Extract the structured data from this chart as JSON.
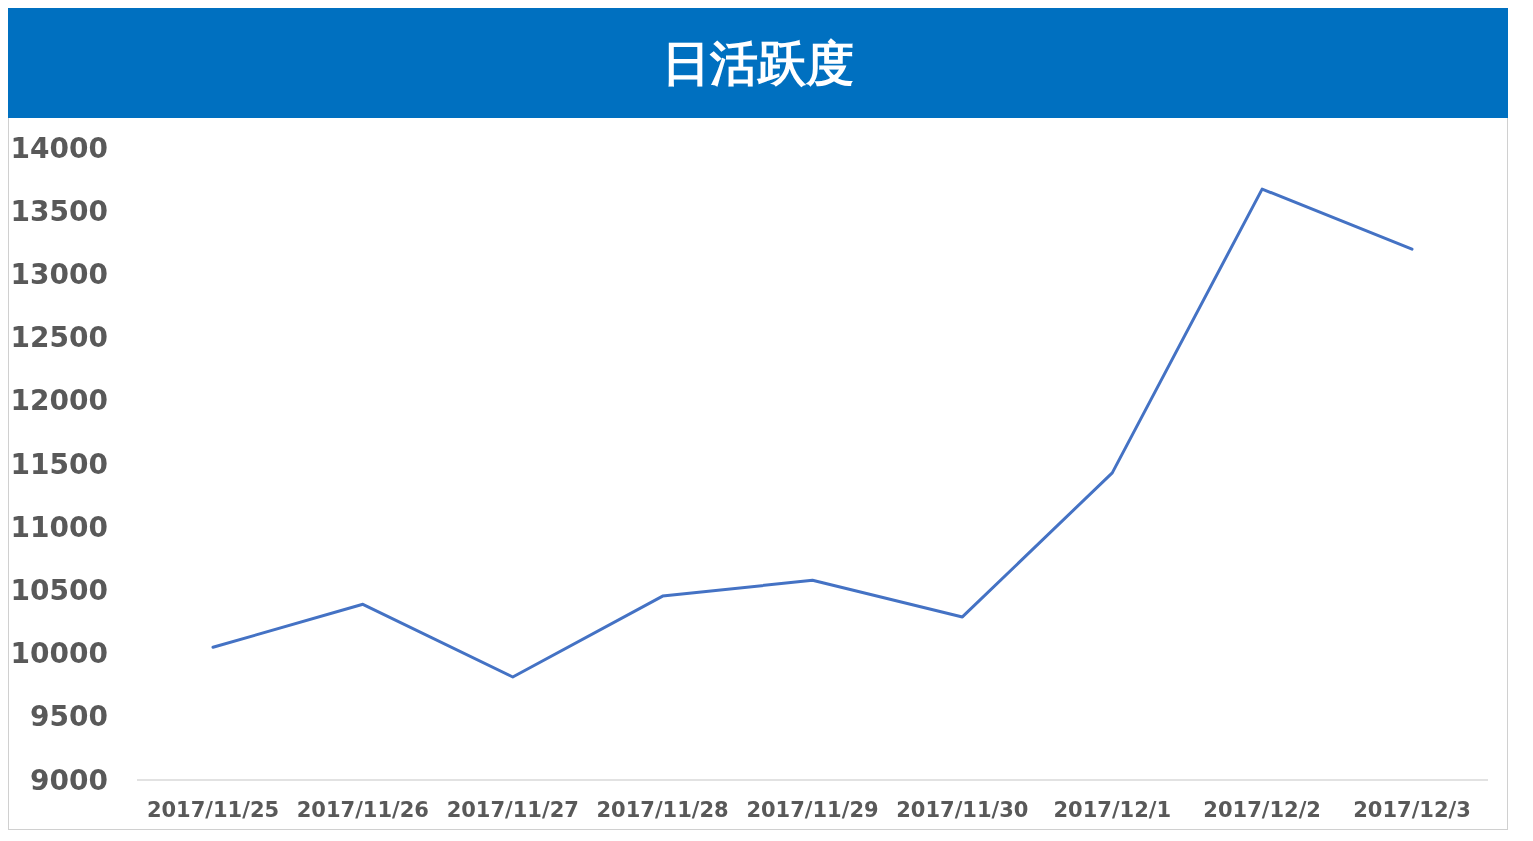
{
  "chart_data": {
    "type": "line",
    "title": "日活跃度",
    "categories": [
      "2017/11/25",
      "2017/11/26",
      "2017/11/27",
      "2017/11/28",
      "2017/11/29",
      "2017/11/30",
      "2017/12/1",
      "2017/12/2",
      "2017/12/3"
    ],
    "series": [
      {
        "color": "#4472c4",
        "values": [
          10050,
          10390,
          9815,
          10455,
          10580,
          10290,
          11430,
          13675,
          13200
        ]
      }
    ],
    "ylim": [
      9000,
      14000
    ],
    "yticks": [
      9000,
      9500,
      10000,
      10500,
      11000,
      11500,
      12000,
      12500,
      13000,
      13500,
      14000
    ],
    "grid": false,
    "marker": "none",
    "line_style": "solid"
  }
}
